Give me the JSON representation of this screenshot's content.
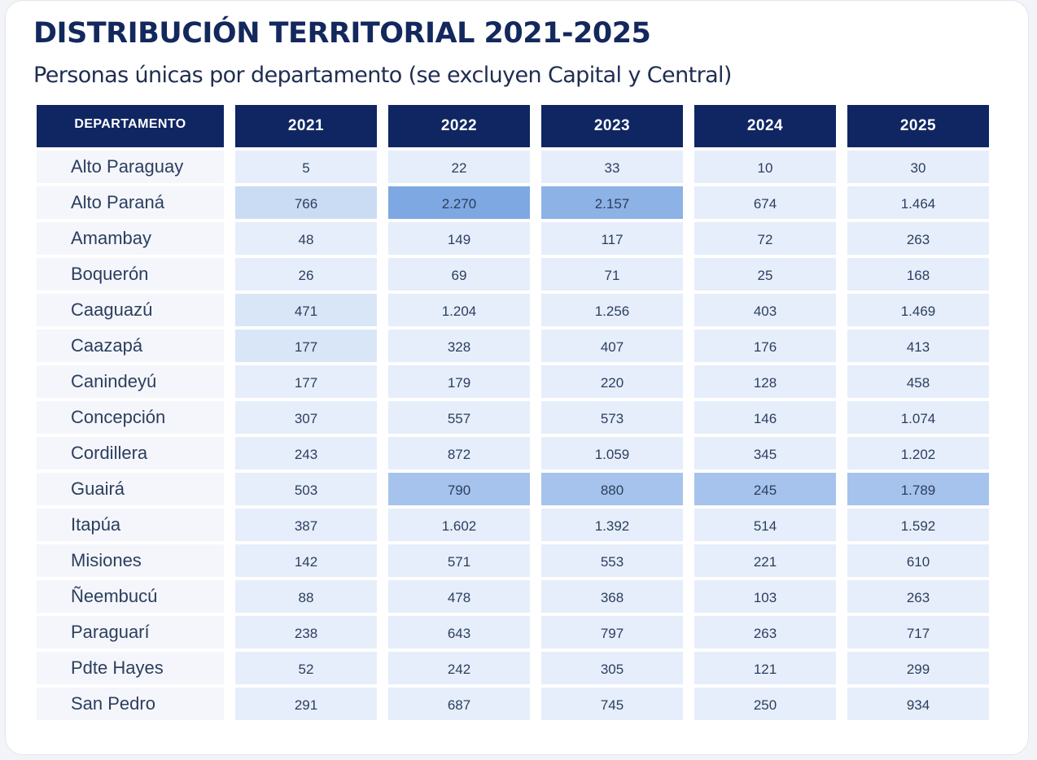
{
  "title": "DISTRIBUCIÓN TERRITORIAL 2021-2025",
  "subtitle": "Personas únicas por departamento (se excluyen Capital y Central)",
  "chart_data": {
    "type": "table",
    "columns": [
      "DEPARTAMENTO",
      "2021",
      "2022",
      "2023",
      "2024",
      "2025"
    ],
    "rows": [
      {
        "dept": "Alto Paraguay",
        "values": [
          "5",
          "22",
          "33",
          "10",
          "30"
        ],
        "shade": [
          "",
          "",
          "",
          "",
          ""
        ]
      },
      {
        "dept": "Alto Paraná",
        "values": [
          "766",
          "2.270",
          "2.157",
          "674",
          "1.464"
        ],
        "shade": [
          "h1",
          "h4",
          "h3",
          "",
          ""
        ]
      },
      {
        "dept": "Amambay",
        "values": [
          "48",
          "149",
          "117",
          "72",
          "263"
        ],
        "shade": [
          "",
          "",
          "",
          "",
          ""
        ]
      },
      {
        "dept": "Boquerón",
        "values": [
          "26",
          "69",
          "71",
          "25",
          "168"
        ],
        "shade": [
          "",
          "",
          "",
          "",
          ""
        ]
      },
      {
        "dept": "Caaguazú",
        "values": [
          "471",
          "1.204",
          "1.256",
          "403",
          "1.469"
        ],
        "shade": [
          "l1",
          "",
          "",
          "",
          ""
        ]
      },
      {
        "dept": "Caazapá",
        "values": [
          "177",
          "328",
          "407",
          "176",
          "413"
        ],
        "shade": [
          "l1",
          "",
          "",
          "",
          ""
        ]
      },
      {
        "dept": "Canindeyú",
        "values": [
          "177",
          "179",
          "220",
          "128",
          "458"
        ],
        "shade": [
          "",
          "",
          "",
          "",
          ""
        ]
      },
      {
        "dept": "Concepción",
        "values": [
          "307",
          "557",
          "573",
          "146",
          "1.074"
        ],
        "shade": [
          "",
          "",
          "",
          "",
          ""
        ]
      },
      {
        "dept": "Cordillera",
        "values": [
          "243",
          "872",
          "1.059",
          "345",
          "1.202"
        ],
        "shade": [
          "",
          "",
          "",
          "",
          ""
        ]
      },
      {
        "dept": "Guairá",
        "values": [
          "503",
          "790",
          "880",
          "245",
          "1.789"
        ],
        "shade": [
          "",
          "h2",
          "h2",
          "h2",
          "h2"
        ]
      },
      {
        "dept": "Itapúa",
        "values": [
          "387",
          "1.602",
          "1.392",
          "514",
          "1.592"
        ],
        "shade": [
          "",
          "",
          "",
          "",
          ""
        ]
      },
      {
        "dept": "Misiones",
        "values": [
          "142",
          "571",
          "553",
          "221",
          "610"
        ],
        "shade": [
          "",
          "",
          "",
          "",
          ""
        ]
      },
      {
        "dept": "Ñeembucú",
        "values": [
          "88",
          "478",
          "368",
          "103",
          "263"
        ],
        "shade": [
          "",
          "",
          "",
          "",
          ""
        ]
      },
      {
        "dept": "Paraguarí",
        "values": [
          "238",
          "643",
          "797",
          "263",
          "717"
        ],
        "shade": [
          "",
          "",
          "",
          "",
          ""
        ]
      },
      {
        "dept": "Pdte Hayes",
        "values": [
          "52",
          "242",
          "305",
          "121",
          "299"
        ],
        "shade": [
          "",
          "",
          "",
          "",
          ""
        ]
      },
      {
        "dept": "San Pedro",
        "values": [
          "291",
          "687",
          "745",
          "250",
          "934"
        ],
        "shade": [
          "",
          "",
          "",
          "",
          ""
        ]
      }
    ]
  },
  "colors": {
    "header_bg": "#0f2663",
    "cell_bg": "#e6eefb",
    "highlight_light": "#cadcf4",
    "highlight_mid": "#a5c3ec",
    "highlight_dark": "#7ea8e2",
    "title": "#13285c"
  }
}
